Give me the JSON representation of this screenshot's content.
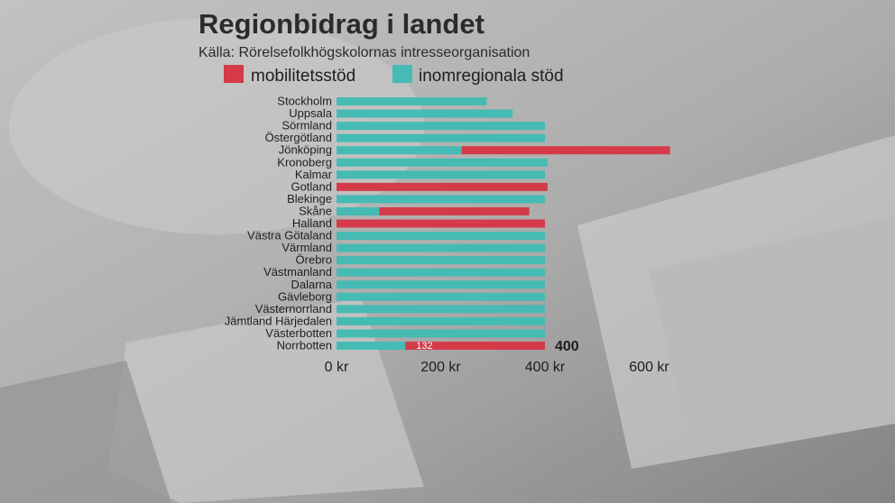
{
  "colors": {
    "mobilitetsstod": "#d43a48",
    "inomregionala": "#45bbb4"
  },
  "chart_data": {
    "type": "bar",
    "orientation": "horizontal",
    "stacked": true,
    "title": "Regionbidrag i landet",
    "subtitle": "Källa: Rörelsefolkhögskolornas intresseorganisation",
    "legend_position": "top",
    "xlim": [
      0,
      700
    ],
    "xticks": [
      {
        "value": 0,
        "label": "0 kr"
      },
      {
        "value": 200,
        "label": "200 kr"
      },
      {
        "value": 400,
        "label": "400 kr"
      },
      {
        "value": 600,
        "label": "600 kr"
      }
    ],
    "categories": [
      "Stockholm",
      "Uppsala",
      "Sörmland",
      "Östergötland",
      "Jönköping",
      "Kronoberg",
      "Kalmar",
      "Gotland",
      "Blekinge",
      "Skåne",
      "Halland",
      "Västra Götaland",
      "Värmland",
      "Örebro",
      "Västmanland",
      "Dalarna",
      "Gävleborg",
      "Västernorrland",
      "Jämtland Härjedalen",
      "Västerbotten",
      "Norrbotten"
    ],
    "series": [
      {
        "name": "mobilitetsstöd",
        "color": "#d43a48",
        "values": [
          0,
          0,
          0,
          0,
          400,
          0,
          0,
          405,
          0,
          288,
          400,
          0,
          0,
          0,
          0,
          0,
          0,
          0,
          0,
          0,
          268
        ]
      },
      {
        "name": "inomregionala stöd",
        "color": "#45bbb4",
        "values": [
          288,
          338,
          400,
          400,
          240,
          405,
          400,
          0,
          400,
          82,
          0,
          400,
          400,
          400,
          400,
          400,
          400,
          400,
          400,
          400,
          132
        ]
      }
    ],
    "series_order_in_bar": [
      1,
      0
    ],
    "annotations": [
      {
        "category": "Norrbotten",
        "text": "132",
        "placement": "inside-bar"
      },
      {
        "category": "Norrbotten",
        "text": "400",
        "placement": "bar-end"
      }
    ]
  }
}
